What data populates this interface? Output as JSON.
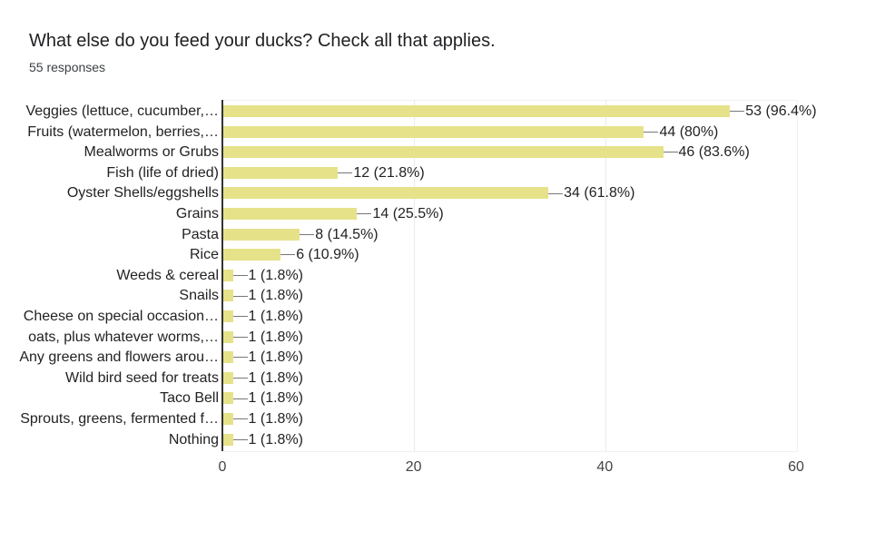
{
  "header": {
    "title": "What else do you feed your ducks? Check all that applies.",
    "responses": "55 responses"
  },
  "chart_data": {
    "type": "bar",
    "orientation": "horizontal",
    "title": "What else do you feed your ducks? Check all that applies.",
    "subtitle": "55 responses",
    "xlabel": "",
    "ylabel": "",
    "xlim": [
      0,
      60
    ],
    "xticks": [
      0,
      20,
      40,
      60
    ],
    "grid": true,
    "bar_color": "#e6e28a",
    "categories": [
      "Veggies (lettuce, cucumber,…",
      "Fruits (watermelon, berries,…",
      "Mealworms or Grubs",
      "Fish (life of dried)",
      "Oyster Shells/eggshells",
      "Grains",
      "Pasta",
      "Rice",
      "Weeds & cereal",
      "Snails",
      "Cheese on special occasion…",
      "oats, plus whatever worms,…",
      "Any greens and flowers arou…",
      "Wild bird seed for treats",
      "Taco Bell",
      "Sprouts, greens, fermented f…",
      "Nothing"
    ],
    "values": [
      53,
      44,
      46,
      12,
      34,
      14,
      8,
      6,
      1,
      1,
      1,
      1,
      1,
      1,
      1,
      1,
      1
    ],
    "labels": [
      "53 (96.4%)",
      "44 (80%)",
      "46 (83.6%)",
      "12 (21.8%)",
      "34 (61.8%)",
      "14 (25.5%)",
      "8 (14.5%)",
      "6 (10.9%)",
      "1 (1.8%)",
      "1 (1.8%)",
      "1 (1.8%)",
      "1 (1.8%)",
      "1 (1.8%)",
      "1 (1.8%)",
      "1 (1.8%)",
      "1 (1.8%)",
      "1 (1.8%)"
    ]
  }
}
